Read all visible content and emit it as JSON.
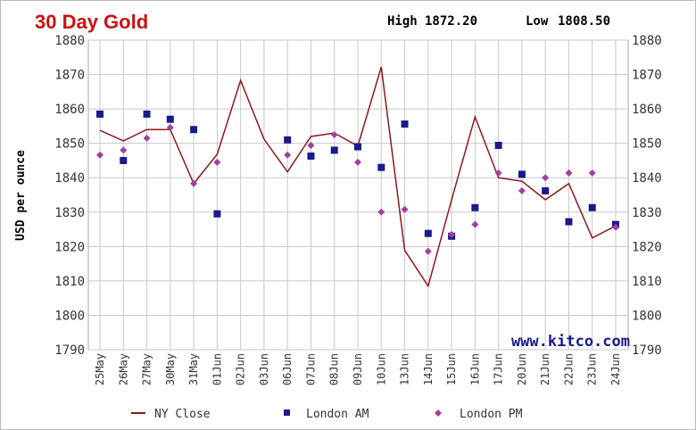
{
  "chart_data": {
    "type": "line",
    "title": "30 Day Gold",
    "summary": {
      "high_label": "High",
      "high": "1872.20",
      "low_label": "Low",
      "low": "1808.50"
    },
    "ylabel": "USD per ounce",
    "xlabel": "",
    "ylim": [
      1790,
      1880
    ],
    "yticks": [
      1790,
      1800,
      1810,
      1820,
      1830,
      1840,
      1850,
      1860,
      1870,
      1880
    ],
    "grid": true,
    "watermark": "www.kitco.com",
    "legend_position": "bottom",
    "categories": [
      "25May",
      "26May",
      "27May",
      "30May",
      "31May",
      "01Jun",
      "02Jun",
      "03Jun",
      "06Jun",
      "07Jun",
      "08Jun",
      "09Jun",
      "10Jun",
      "13Jun",
      "14Jun",
      "15Jun",
      "16Jun",
      "17Jun",
      "20Jun",
      "21Jun",
      "22Jun",
      "23Jun",
      "24Jun"
    ],
    "series": [
      {
        "name": "NY Close",
        "kind": "line",
        "color": "#8b1a1a",
        "values": [
          1853.8,
          1850.7,
          1854,
          1854,
          1838.3,
          1846.8,
          1868.3,
          1851.2,
          1841.7,
          1852,
          1853,
          1849.2,
          1872.2,
          1818.9,
          1808.5,
          1833.6,
          1857.7,
          1840,
          1839,
          1833.6,
          1838.3,
          1822.5,
          1826
        ]
      },
      {
        "name": "London AM",
        "kind": "square",
        "color": "#1a1a8c",
        "values": [
          1858.5,
          1845,
          1858.5,
          1857,
          1854,
          1829.5,
          null,
          null,
          1851,
          1846.3,
          1848,
          1849,
          1843,
          1855.6,
          1823.8,
          1823,
          1831.3,
          1849.4,
          1841,
          1836.2,
          1827.2,
          1831.3,
          1826.4
        ]
      },
      {
        "name": "London PM",
        "kind": "diamond",
        "color": "#a040a0",
        "values": [
          1846.6,
          1848,
          1851.5,
          1854.6,
          1838.3,
          1844.5,
          null,
          null,
          1846.6,
          1849.4,
          1852.5,
          1844.5,
          1830,
          1830.8,
          1818.6,
          1823.5,
          1826.4,
          1841.4,
          1836.2,
          1840,
          1841.4,
          1841.4,
          1825.6
        ]
      }
    ]
  }
}
